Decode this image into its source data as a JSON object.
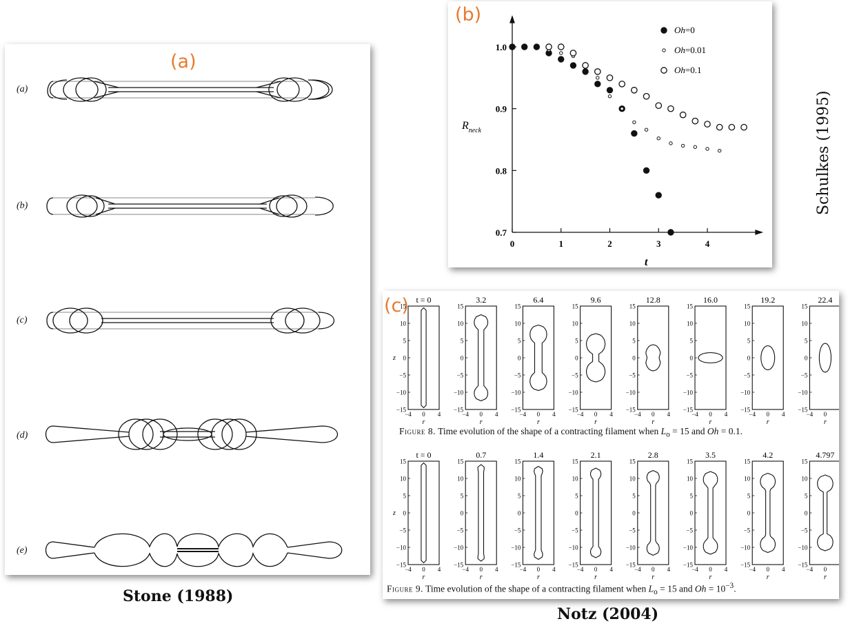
{
  "panel_a": {
    "letter": "(a)",
    "rows": [
      "(a)",
      "(b)",
      "(c)",
      "(d)",
      "(e)"
    ],
    "caption": "Stone (1988)"
  },
  "panel_b": {
    "letter": "(b)",
    "side_caption": "Schulkes (1995)",
    "legend": [
      "Oh=0",
      "Oh=0.01",
      "Oh=0.1"
    ],
    "ylabel": "R",
    "ylabel_sub": "neck",
    "xlabel": "t",
    "yticks": [
      "1.0",
      "0.9",
      "0.8",
      "0.7"
    ],
    "xticks": [
      "0",
      "1",
      "2",
      "3",
      "4"
    ]
  },
  "panel_c": {
    "letter": "(c)",
    "fig8_times": [
      "t = 0",
      "3.2",
      "6.4",
      "9.6",
      "12.8",
      "16.0",
      "19.2",
      "22.4"
    ],
    "fig9_times": [
      "t = 0",
      "0.7",
      "1.4",
      "2.1",
      "2.8",
      "3.5",
      "4.2",
      "4.797"
    ],
    "z_ticks": [
      "15",
      "10",
      "5",
      "0",
      "−5",
      "−10",
      "−15"
    ],
    "r_ticks": [
      "−4",
      "0",
      "4"
    ],
    "z_label": "z",
    "r_label": "r",
    "fig8_caption": "Figure 8. Time evolution of the shape of a contracting filament when L₀ = 15 and Oh = 0.1.",
    "fig9_caption": "Figure 9. Time evolution of the shape of a contracting filament when L₀ = 15 and Oh = 10⁻³.",
    "caption": "Notz (2004)"
  },
  "chart_data": {
    "type": "scatter",
    "xlabel": "t",
    "ylabel": "R_neck",
    "xlim": [
      0,
      4.9
    ],
    "ylim": [
      0.7,
      1.05
    ],
    "legend_position": "top-right",
    "series": [
      {
        "name": "Oh=0",
        "marker": "filled-circle",
        "x": [
          0,
          0.25,
          0.5,
          0.75,
          1.0,
          1.25,
          1.5,
          1.75,
          2.0,
          2.25,
          2.5,
          2.75,
          3.0,
          3.25
        ],
        "y": [
          1.0,
          1.0,
          1.0,
          0.99,
          0.98,
          0.97,
          0.96,
          0.94,
          0.93,
          0.9,
          0.86,
          0.8,
          0.76,
          0.7
        ]
      },
      {
        "name": "Oh=0.01",
        "marker": "small-open-circle",
        "x": [
          0.75,
          1.0,
          1.25,
          1.5,
          1.75,
          2.0,
          2.25,
          2.5,
          2.75,
          3.0,
          3.25,
          3.5,
          3.75,
          4.0,
          4.25
        ],
        "y": [
          0.995,
          0.99,
          0.985,
          0.97,
          0.95,
          0.92,
          0.9,
          0.878,
          0.866,
          0.852,
          0.844,
          0.84,
          0.838,
          0.835,
          0.832
        ]
      },
      {
        "name": "Oh=0.1",
        "marker": "open-circle",
        "x": [
          0.75,
          1.0,
          1.25,
          1.5,
          1.75,
          2.0,
          2.25,
          2.5,
          2.75,
          3.0,
          3.25,
          3.5,
          3.75,
          4.0,
          4.25,
          4.5,
          4.75
        ],
        "y": [
          1.0,
          1.0,
          0.99,
          0.97,
          0.96,
          0.95,
          0.94,
          0.93,
          0.92,
          0.905,
          0.9,
          0.89,
          0.88,
          0.875,
          0.87,
          0.87,
          0.87
        ]
      }
    ]
  }
}
